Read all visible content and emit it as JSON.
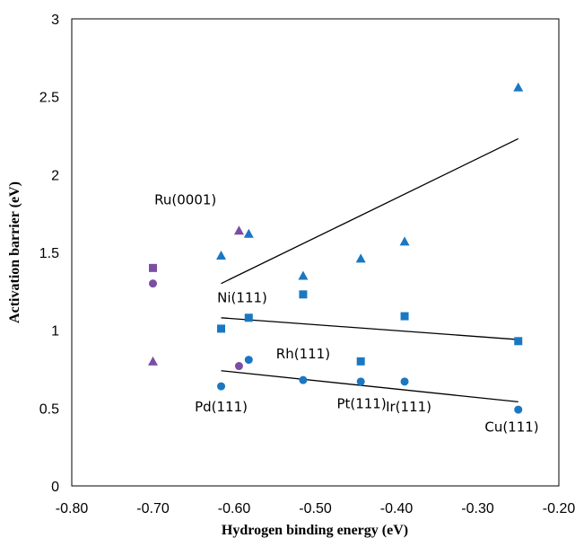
{
  "chart_data": {
    "type": "scatter",
    "xlabel": "Hydrogen binding energy (eV)",
    "ylabel": "Activation barrier (eV)",
    "xlim": [
      -0.8,
      -0.2
    ],
    "ylim": [
      0,
      3
    ],
    "x_ticks": [
      "-0.80",
      "-0.70",
      "-0.60",
      "-0.50",
      "-0.40",
      "-0.30",
      "-0.20"
    ],
    "y_ticks": [
      "0",
      "0.5",
      "1",
      "1.5",
      "2",
      "2.5",
      "3"
    ],
    "grid": false,
    "legend": false,
    "colors": {
      "blue": "#1a78c2",
      "purple": "#7a4fa3",
      "line": "#000000"
    },
    "series": [
      {
        "marker": "triangle",
        "color": "blue",
        "points": [
          [
            -0.616,
            1.48
          ],
          [
            -0.582,
            1.62
          ],
          [
            -0.515,
            1.35
          ],
          [
            -0.444,
            1.46
          ],
          [
            -0.39,
            1.57
          ],
          [
            -0.25,
            2.56
          ]
        ]
      },
      {
        "marker": "square",
        "color": "blue",
        "points": [
          [
            -0.616,
            1.01
          ],
          [
            -0.582,
            1.08
          ],
          [
            -0.515,
            1.23
          ],
          [
            -0.444,
            0.8
          ],
          [
            -0.39,
            1.09
          ],
          [
            -0.25,
            0.93
          ]
        ]
      },
      {
        "marker": "circle",
        "color": "blue",
        "points": [
          [
            -0.616,
            0.64
          ],
          [
            -0.582,
            0.81
          ],
          [
            -0.515,
            0.68
          ],
          [
            -0.444,
            0.67
          ],
          [
            -0.39,
            0.67
          ],
          [
            -0.25,
            0.49
          ]
        ]
      },
      {
        "marker": "triangle",
        "color": "purple",
        "points": [
          [
            -0.7,
            0.8
          ],
          [
            -0.594,
            1.64
          ]
        ]
      },
      {
        "marker": "square",
        "color": "purple",
        "points": [
          [
            -0.7,
            1.4
          ]
        ]
      },
      {
        "marker": "circle",
        "color": "purple",
        "points": [
          [
            -0.7,
            1.3
          ],
          [
            -0.594,
            0.77
          ]
        ]
      }
    ],
    "trendlines": [
      {
        "x": [
          -0.616,
          -0.25
        ],
        "y": [
          1.3,
          2.23
        ]
      },
      {
        "x": [
          -0.616,
          -0.25
        ],
        "y": [
          1.08,
          0.94
        ]
      },
      {
        "x": [
          -0.616,
          -0.25
        ],
        "y": [
          0.74,
          0.54
        ]
      }
    ],
    "annotations": [
      {
        "text": "Ru(0001)",
        "x": -0.66,
        "y": 1.81
      },
      {
        "text": "Ni(111)",
        "x": -0.59,
        "y": 1.18
      },
      {
        "text": "Rh(111)",
        "x": -0.515,
        "y": 0.82
      },
      {
        "text": "Pd(111)",
        "x": -0.616,
        "y": 0.48
      },
      {
        "text": "Pt(111)",
        "x": -0.443,
        "y": 0.5
      },
      {
        "text": "Ir(111)",
        "x": -0.385,
        "y": 0.48
      },
      {
        "text": "Cu(111)",
        "x": -0.258,
        "y": 0.35
      }
    ]
  }
}
